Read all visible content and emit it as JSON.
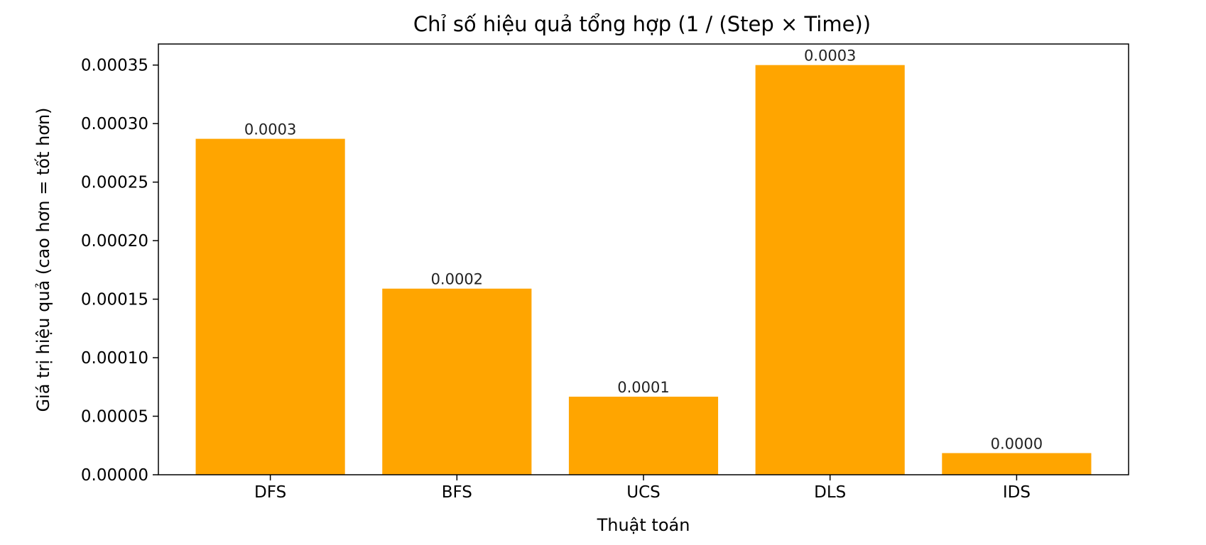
{
  "chart_data": {
    "type": "bar",
    "title": "Chỉ số hiệu quả tổng hợp (1 / (Step × Time))",
    "xlabel": "Thuật toán",
    "ylabel": "Giá trị hiệu quả (cao hơn = tốt hơn)",
    "categories": [
      "DFS",
      "BFS",
      "UCS",
      "DLS",
      "IDS"
    ],
    "values": [
      0.000287,
      0.000159,
      6.67e-05,
      0.00035,
      1.85e-05
    ],
    "data_labels": [
      "0.0003",
      "0.0002",
      "0.0001",
      "0.0003",
      "0.0000"
    ],
    "ylim": [
      0,
      0.000368
    ],
    "yticks": [
      0,
      5e-05,
      0.0001,
      0.00015,
      0.0002,
      0.00025,
      0.0003,
      0.00035
    ],
    "ytick_labels": [
      "0.00000",
      "0.00005",
      "0.00010",
      "0.00015",
      "0.00020",
      "0.00025",
      "0.00030",
      "0.00035"
    ],
    "bar_color": "#ffa500",
    "grid": false,
    "legend": "none"
  }
}
